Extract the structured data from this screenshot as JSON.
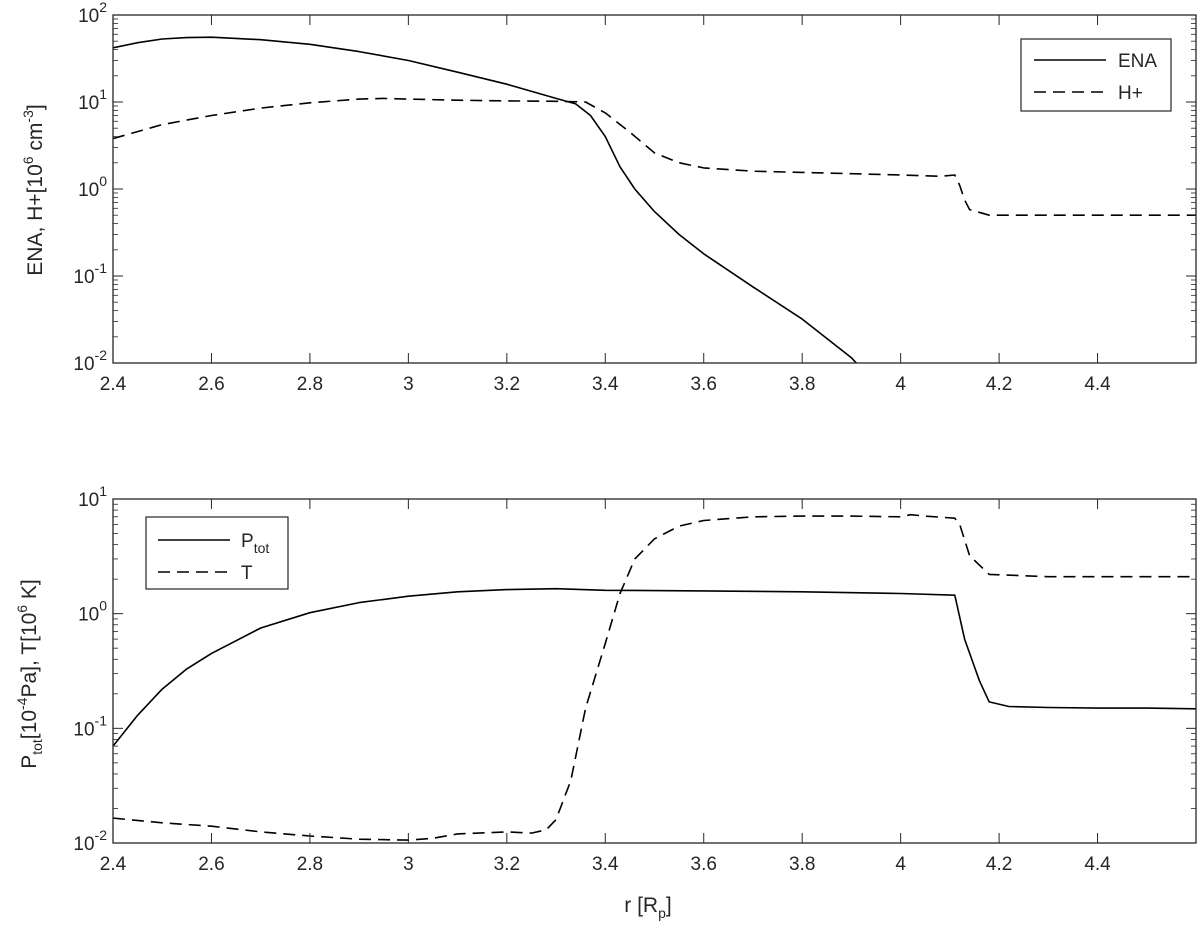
{
  "chart_data": [
    {
      "type": "line",
      "scale": {
        "y": "log"
      },
      "xlim": [
        2.4,
        4.6
      ],
      "ylim": [
        0.01,
        100
      ],
      "grid": false,
      "legend_position": "top-right",
      "xticks": [
        2.4,
        2.6,
        2.8,
        3,
        3.2,
        3.4,
        3.6,
        3.8,
        4,
        4.2,
        4.4
      ],
      "xtick_labels": [
        "2.4",
        "2.6",
        "2.8",
        "3",
        "3.2",
        "3.4",
        "3.6",
        "3.8",
        "4",
        "4.2",
        "4.4"
      ],
      "yticks": [
        {
          "value": 0.01,
          "base": "10",
          "exp": "-2"
        },
        {
          "value": 0.1,
          "base": "10",
          "exp": "-1"
        },
        {
          "value": 1,
          "base": "10",
          "exp": "0"
        },
        {
          "value": 10,
          "base": "10",
          "exp": "1"
        },
        {
          "value": 100,
          "base": "10",
          "exp": "2"
        }
      ],
      "ylabel": {
        "main": "ENA, H+[10",
        "sup1": "6",
        "mid": " cm",
        "sup2": "-3",
        "end": "]"
      },
      "series": [
        {
          "name": "ENA",
          "style": "solid",
          "x": [
            2.4,
            2.45,
            2.5,
            2.55,
            2.6,
            2.7,
            2.8,
            2.9,
            3.0,
            3.1,
            3.2,
            3.3,
            3.34,
            3.37,
            3.4,
            3.43,
            3.46,
            3.5,
            3.55,
            3.6,
            3.7,
            3.8,
            3.9,
            3.91
          ],
          "y": [
            42,
            48,
            53,
            55,
            55.5,
            52,
            46,
            38,
            30,
            22,
            16,
            11,
            9.5,
            7,
            4,
            1.8,
            1.0,
            0.55,
            0.3,
            0.18,
            0.075,
            0.032,
            0.0115,
            0.01
          ]
        },
        {
          "name": "H+",
          "style": "dashed",
          "x": [
            2.4,
            2.5,
            2.6,
            2.7,
            2.8,
            2.9,
            2.95,
            3.0,
            3.1,
            3.2,
            3.3,
            3.36,
            3.4,
            3.45,
            3.5,
            3.55,
            3.6,
            3.7,
            3.8,
            3.9,
            4.0,
            4.08,
            4.11,
            4.12,
            4.13,
            4.14,
            4.18,
            4.3,
            4.4,
            4.6
          ],
          "y": [
            3.8,
            5.5,
            7,
            8.5,
            9.8,
            10.8,
            11,
            10.8,
            10.5,
            10.3,
            10.2,
            10,
            7.5,
            4.5,
            2.6,
            2.0,
            1.75,
            1.6,
            1.55,
            1.5,
            1.45,
            1.4,
            1.45,
            1.1,
            0.75,
            0.58,
            0.5,
            0.5,
            0.5,
            0.5
          ]
        }
      ]
    },
    {
      "type": "line",
      "scale": {
        "y": "log"
      },
      "xlim": [
        2.4,
        4.6
      ],
      "ylim": [
        0.01,
        10
      ],
      "grid": false,
      "legend_position": "top-left",
      "xticks": [
        2.4,
        2.6,
        2.8,
        3,
        3.2,
        3.4,
        3.6,
        3.8,
        4,
        4.2,
        4.4
      ],
      "xtick_labels": [
        "2.4",
        "2.6",
        "2.8",
        "3",
        "3.2",
        "3.4",
        "3.6",
        "3.8",
        "4",
        "4.2",
        "4.4"
      ],
      "yticks": [
        {
          "value": 0.01,
          "base": "10",
          "exp": "-2"
        },
        {
          "value": 0.1,
          "base": "10",
          "exp": "-1"
        },
        {
          "value": 1,
          "base": "10",
          "exp": "0"
        },
        {
          "value": 10,
          "base": "10",
          "exp": "1"
        }
      ],
      "xlabel": {
        "main": "r [R",
        "sub": "p",
        "end": "]"
      },
      "ylabel": {
        "p": "P",
        "sub1": "tot",
        "a": "[10",
        "sup1": "-4",
        "b": "Pa], T[10",
        "sup2": "6",
        "c": " K]"
      },
      "series": [
        {
          "name": "P",
          "name_sub": "tot",
          "style": "solid",
          "x": [
            2.4,
            2.45,
            2.5,
            2.55,
            2.6,
            2.7,
            2.8,
            2.9,
            3.0,
            3.1,
            3.2,
            3.3,
            3.4,
            3.6,
            3.8,
            4.0,
            4.11,
            4.13,
            4.16,
            4.18,
            4.22,
            4.3,
            4.4,
            4.5,
            4.6
          ],
          "y": [
            0.07,
            0.13,
            0.22,
            0.33,
            0.45,
            0.75,
            1.02,
            1.25,
            1.42,
            1.55,
            1.62,
            1.65,
            1.6,
            1.58,
            1.55,
            1.5,
            1.45,
            0.6,
            0.26,
            0.17,
            0.155,
            0.152,
            0.15,
            0.15,
            0.148
          ]
        },
        {
          "name": "T",
          "style": "dashed",
          "x": [
            2.4,
            2.5,
            2.6,
            2.7,
            2.8,
            2.9,
            3.0,
            3.05,
            3.1,
            3.2,
            3.25,
            3.28,
            3.3,
            3.33,
            3.36,
            3.4,
            3.43,
            3.46,
            3.5,
            3.55,
            3.6,
            3.7,
            3.8,
            3.9,
            4.0,
            4.02,
            4.05,
            4.11,
            4.12,
            4.14,
            4.18,
            4.3,
            4.45,
            4.6
          ],
          "y": [
            0.0165,
            0.015,
            0.014,
            0.0125,
            0.0115,
            0.0108,
            0.0106,
            0.011,
            0.012,
            0.0125,
            0.0122,
            0.013,
            0.016,
            0.035,
            0.15,
            0.55,
            1.5,
            3.0,
            4.5,
            5.8,
            6.5,
            7.0,
            7.1,
            7.1,
            7.0,
            7.3,
            7.1,
            6.8,
            6.0,
            3.2,
            2.2,
            2.1,
            2.1,
            2.1
          ]
        }
      ]
    }
  ]
}
